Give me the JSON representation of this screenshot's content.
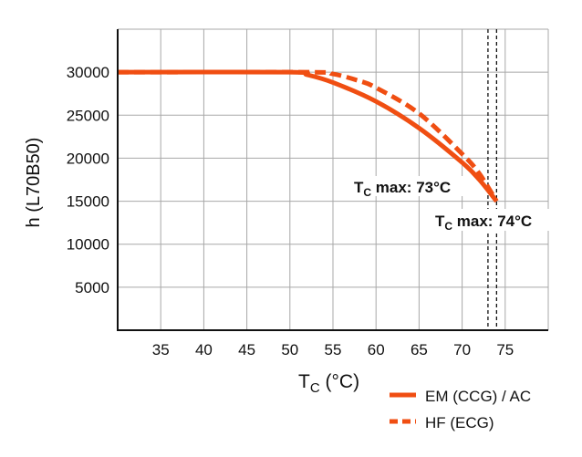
{
  "chart_data": {
    "type": "line",
    "title": "",
    "xlabel_main": "T",
    "xlabel_sub": "C",
    "xlabel_unit": " (°C)",
    "ylabel": "h (L70B50)",
    "xlim": [
      30,
      80
    ],
    "ylim": [
      0,
      35000
    ],
    "grid": true,
    "xticks": [
      35,
      40,
      45,
      50,
      55,
      60,
      65,
      70,
      75
    ],
    "yticks": [
      5000,
      10000,
      15000,
      20000,
      25000,
      30000
    ],
    "ytick_labels": [
      "5000",
      "10000",
      "15000",
      "20000",
      "25000",
      "30000"
    ],
    "series": [
      {
        "name": "EM (CCG) / AC",
        "style": "solid",
        "color": "#f04e12",
        "x": [
          30,
          50,
          52,
          55,
          60,
          65,
          70,
          72,
          74
        ],
        "y": [
          30000,
          30000,
          29700,
          28800,
          26600,
          23500,
          19500,
          17500,
          15000
        ]
      },
      {
        "name": "HF (ECG)",
        "style": "dashed",
        "color": "#f04e12",
        "x": [
          30,
          52,
          55,
          58,
          60,
          65,
          70,
          72,
          74
        ],
        "y": [
          30000,
          30000,
          29800,
          29000,
          28200,
          25200,
          20500,
          18200,
          15000
        ]
      }
    ],
    "reference_lines": [
      73,
      74
    ],
    "annotations": [
      {
        "main": "T",
        "sub": "C",
        "rest": " max: 73°C",
        "x": 73,
        "y": 15000
      },
      {
        "main": "T",
        "sub": "C",
        "rest": " max: 74°C",
        "x": 74,
        "y": 15000
      }
    ],
    "legend_placement": "bottom-right"
  }
}
